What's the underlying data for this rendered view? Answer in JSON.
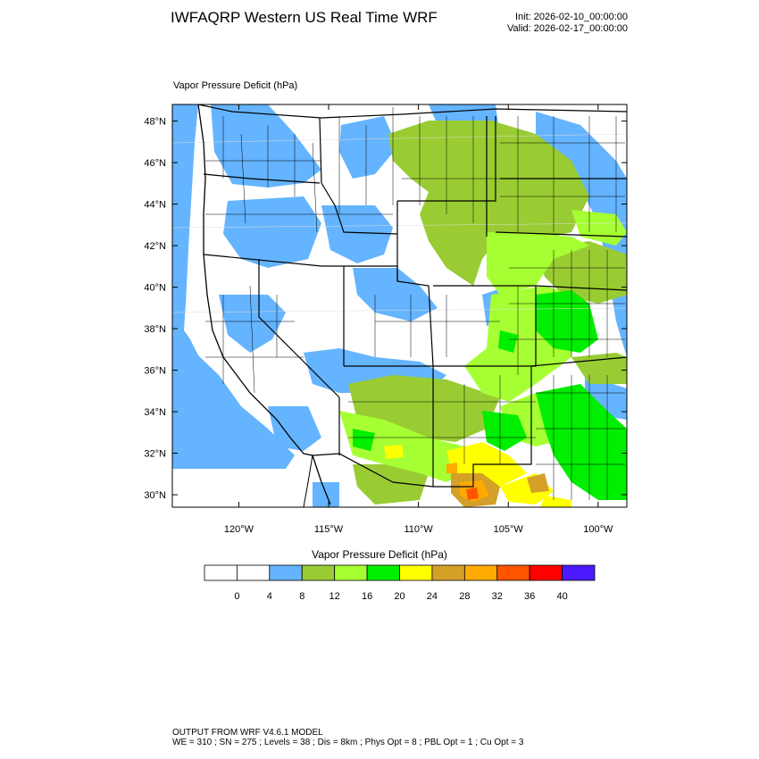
{
  "header": {
    "title": "IWFAQRP Western US Real Time WRF",
    "init": "Init: 2026-02-10_00:00:00",
    "valid": "Valid: 2026-02-17_00:00:00"
  },
  "map": {
    "field_label": "Vapor Pressure Deficit   (hPa)",
    "lat_labels": [
      "30°N",
      "32°N",
      "34°N",
      "36°N",
      "38°N",
      "40°N",
      "42°N",
      "44°N",
      "46°N",
      "48°N"
    ],
    "lon_labels": [
      "120°W",
      "115°W",
      "110°W",
      "105°W",
      "100°W"
    ],
    "lat_values": [
      30,
      32,
      34,
      36,
      38,
      40,
      42,
      44,
      46,
      48
    ],
    "lon_values": [
      -120,
      -115,
      -110,
      -105,
      -100
    ],
    "extent": {
      "lon_min": -123.7,
      "lon_max": -98.4,
      "lat_min": 29.4,
      "lat_max": 48.8
    }
  },
  "colorbar": {
    "title": "Vapor Pressure Deficit  (hPa)",
    "tick_labels": [
      "0",
      "4",
      "8",
      "12",
      "16",
      "20",
      "24",
      "28",
      "32",
      "36",
      "40"
    ],
    "colors": [
      "#ffffff",
      "#ffffff",
      "#64b4ff",
      "#99cc33",
      "#a6ff33",
      "#00ee00",
      "#ffff00",
      "#d4a028",
      "#ffaa00",
      "#ff5500",
      "#ff0000",
      "#4b1aff"
    ]
  },
  "footer": {
    "line1": "OUTPUT FROM WRF V4.6.1 MODEL",
    "line2": "WE = 310 ; SN = 275 ; Levels = 38 ; Dis = 8km ; Phys Opt = 8 ; PBL Opt = 1 ; Cu Opt = 3"
  }
}
